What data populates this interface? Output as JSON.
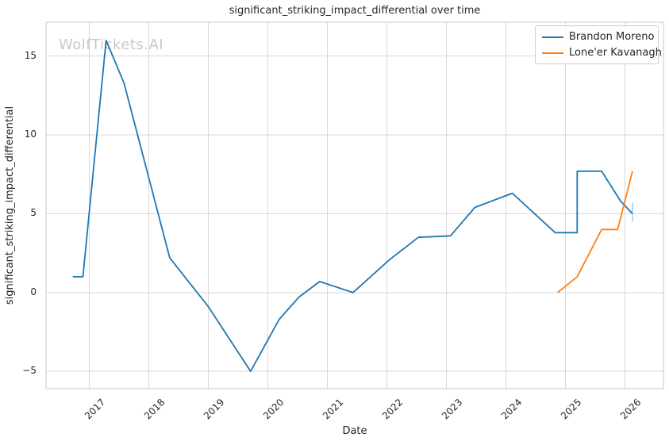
{
  "watermark": {
    "text": "WolfTickets.AI",
    "color": "#c9c9c9"
  },
  "chart_data": {
    "type": "line",
    "title": "significant_striking_impact_differential over time",
    "xlabel": "Date",
    "ylabel": "significant_striking_impact_differential",
    "grid": true,
    "legend_position": "upper right",
    "xlim": [
      2016.27,
      2026.65
    ],
    "ylim": [
      -6.1,
      17.15
    ],
    "x_ticks": [
      2017,
      2018,
      2019,
      2020,
      2021,
      2022,
      2023,
      2024,
      2025,
      2026
    ],
    "y_ticks": [
      -5,
      0,
      5,
      10,
      15
    ],
    "series": [
      {
        "name": "Brandon Moreno",
        "color": "#1f77b4",
        "points": [
          [
            2016.72,
            1.0
          ],
          [
            2016.89,
            1.0
          ],
          [
            2017.28,
            16.0
          ],
          [
            2017.58,
            13.3
          ],
          [
            2018.35,
            2.2
          ],
          [
            2019.0,
            -0.9
          ],
          [
            2019.71,
            -5.0
          ],
          [
            2020.19,
            -1.7
          ],
          [
            2020.52,
            -0.3
          ],
          [
            2020.87,
            0.7
          ],
          [
            2021.43,
            0.0
          ],
          [
            2022.05,
            2.1
          ],
          [
            2022.53,
            3.5
          ],
          [
            2023.07,
            3.6
          ],
          [
            2023.48,
            5.4
          ],
          [
            2024.11,
            6.3
          ],
          [
            2024.83,
            3.8
          ],
          [
            2025.2,
            3.8
          ],
          [
            2025.2,
            7.7
          ],
          [
            2025.61,
            7.7
          ],
          [
            2025.93,
            5.8
          ],
          [
            2026.13,
            5.0
          ]
        ]
      },
      {
        "name": "Lone'er Kavanagh",
        "color": "#ff7f0e",
        "points": [
          [
            2024.87,
            0.0
          ],
          [
            2025.2,
            1.0
          ],
          [
            2025.61,
            4.0
          ],
          [
            2025.88,
            4.0
          ],
          [
            2026.13,
            7.7
          ]
        ]
      }
    ],
    "endpoint_tick": {
      "x": 2026.13,
      "y1": 4.5,
      "y2": 5.7,
      "color": "#a9cfe9"
    }
  }
}
